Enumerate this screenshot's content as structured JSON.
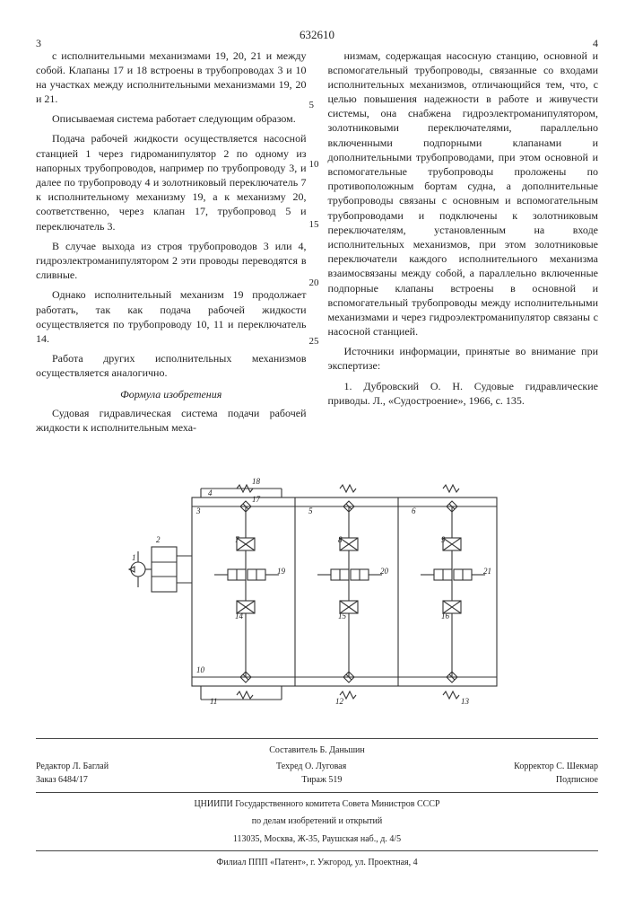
{
  "patent_number": "632610",
  "left_col_num": "3",
  "right_col_num": "4",
  "line_markers": {
    "m5": "5",
    "m10": "10",
    "m15": "15",
    "m20": "20",
    "m25": "25"
  },
  "left": {
    "p1": "с исполнительными механизмами 19, 20, 21 и между собой. Клапаны 17 и 18 встроены в трубопроводах 3 и 10 на участках между исполнительными механизмами 19, 20 и 21.",
    "p2": "Описываемая система работает следующим образом.",
    "p3": "Подача рабочей жидкости осуществляется насосной станцией 1 через гидроманипулятор 2 по одному из напорных трубопроводов, например по трубопроводу 3, и далее по трубопроводу 4 и золотниковый переключатель 7 к исполнительному механизму 19, а к механизму 20, соответственно, через клапан 17, трубопровод 5 и переключатель 3.",
    "p4": "В случае выхода из строя трубопроводов 3 или 4, гидроэлектроманипулятором 2 эти проводы переводятся в сливные.",
    "p5": "Однако исполнительный механизм 19 продолжает работать, так как подача рабочей жидкости осуществляется по трубопроводу 10, 11 и переключатель 14.",
    "p6": "Работа других исполнительных механизмов осуществляется аналогично.",
    "formula_title": "Формула изобретения",
    "p7": "Судовая гидравлическая система подачи рабочей жидкости к исполнительным меха-"
  },
  "right": {
    "p1": "низмам, содержащая насосную станцию, основной и вспомогательный трубопроводы, связанные со входами исполнительных механизмов, отличающийся тем, что, с целью повышения надежности в работе и живучести системы, она снабжена гидроэлектроманипулятором, золотниковыми переключателями, параллельно включенными подпорными клапанами и дополнительными трубопроводами, при этом основной и вспомогательные трубопроводы проложены по противоположным бортам судна, а дополнительные трубопроводы связаны с основным и вспомогательным трубопроводами и подключены к золотниковым переключателям, установленным на входе исполнительных механизмов, при этом золотниковые переключатели каждого исполнительного механизма взаимосвязаны между собой, а параллельно включенные подпорные клапаны встроены в основной и вспомогательный трубопроводы между исполнительными механизмами и через гидроэлектроманипулятор связаны с насосной станцией.",
    "p2": "Источники информации, принятые во внимание при экспертизе:",
    "p3": "1. Дубровский О. Н. Судовые гидравлические приводы. Л., «Судостроение», 1966, с. 135."
  },
  "diagram": {
    "stroke": "#333",
    "stroke_width": 1.1,
    "labels": [
      "1",
      "2",
      "3",
      "4",
      "5",
      "6",
      "7",
      "8",
      "9",
      "10",
      "11",
      "12",
      "13",
      "14",
      "15",
      "16",
      "17",
      "18",
      "19",
      "20",
      "21"
    ],
    "font_size": 9
  },
  "footer": {
    "editor": "Редактор Л. Баглай",
    "techred": "Техред О. Луговая",
    "corrector": "Корректор С. Шекмар",
    "order": "Заказ 6484/17",
    "tirazh": "Тираж 519",
    "podpis": "Подписное",
    "org1": "ЦНИИПИ Государственного комитета Совета Министров СССР",
    "org2": "по делам изобретений и открытий",
    "addr1": "113035, Москва, Ж-35, Раушская наб., д. 4/5",
    "addr2": "Филиал ППП «Патент», г. Ужгород, ул. Проектная, 4",
    "compiler": "Составитель Б. Даньшин"
  }
}
